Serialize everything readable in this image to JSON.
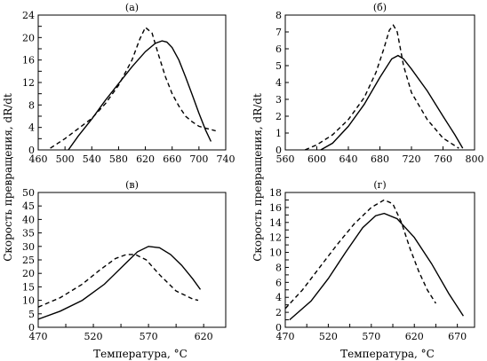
{
  "figure": {
    "ylabel": "Скорость превращения, dR/dt",
    "xlabel": "Температура, °С"
  },
  "chart_data": [
    {
      "type": "line",
      "panel": "(а)",
      "xlim": [
        460,
        740
      ],
      "ylim": [
        0,
        24
      ],
      "xticks": [
        460,
        500,
        540,
        580,
        620,
        660,
        700,
        740
      ],
      "yticks": [
        0,
        2,
        4,
        6,
        8,
        10,
        12,
        14,
        16,
        18,
        20,
        22,
        24
      ],
      "ytick_labels": [
        0,
        4,
        8,
        12,
        16,
        20,
        24
      ],
      "grid": false,
      "series": [
        {
          "style": "solid",
          "x": [
            505,
            520,
            540,
            560,
            580,
            600,
            620,
            635,
            645,
            652,
            660,
            670,
            680,
            690,
            700,
            710,
            718
          ],
          "y": [
            0,
            2.5,
            5.5,
            8.8,
            11.8,
            14.8,
            17.5,
            19.0,
            19.4,
            19.2,
            18.2,
            16.0,
            13.0,
            9.8,
            6.5,
            3.5,
            1.5
          ]
        },
        {
          "style": "dashed",
          "x": [
            478,
            500,
            520,
            540,
            560,
            580,
            600,
            612,
            620,
            630,
            640,
            650,
            660,
            670,
            680,
            690,
            700,
            712,
            725
          ],
          "y": [
            0.3,
            2.0,
            3.8,
            5.6,
            8.2,
            11.5,
            16.0,
            19.8,
            21.8,
            20.8,
            16.8,
            13.0,
            10.0,
            7.8,
            6.0,
            5.0,
            4.2,
            3.8,
            3.4
          ]
        }
      ]
    },
    {
      "type": "line",
      "panel": "(б)",
      "xlim": [
        560,
        800
      ],
      "ylim": [
        0,
        8
      ],
      "xticks": [
        560,
        600,
        640,
        680,
        720,
        760,
        800
      ],
      "yticks": [
        0,
        1,
        2,
        3,
        4,
        5,
        6,
        7,
        8
      ],
      "ytick_labels": [
        0,
        1,
        2,
        3,
        4,
        5,
        6,
        7,
        8
      ],
      "grid": false,
      "series": [
        {
          "style": "solid",
          "x": [
            605,
            620,
            640,
            660,
            680,
            695,
            703,
            710,
            720,
            740,
            760,
            775,
            785
          ],
          "y": [
            0,
            0.4,
            1.4,
            2.7,
            4.3,
            5.4,
            5.6,
            5.4,
            4.8,
            3.5,
            2.0,
            0.9,
            0.1
          ]
        },
        {
          "style": "dashed",
          "x": [
            585,
            600,
            620,
            640,
            660,
            675,
            685,
            692,
            697,
            702,
            710,
            720,
            740,
            760,
            780
          ],
          "y": [
            0,
            0.3,
            0.9,
            1.8,
            3.1,
            4.6,
            6.0,
            7.1,
            7.4,
            7.0,
            5.0,
            3.4,
            1.8,
            0.7,
            0.1
          ]
        }
      ]
    },
    {
      "type": "line",
      "panel": "(в)",
      "xlim": [
        470,
        640
      ],
      "ylim": [
        0,
        50
      ],
      "xticks": [
        470,
        495,
        520,
        545,
        570,
        595,
        620
      ],
      "xtick_labels": [
        470,
        520,
        570,
        620
      ],
      "yticks": [
        0,
        5,
        10,
        15,
        20,
        25,
        30,
        35,
        40,
        45,
        50
      ],
      "ytick_labels": [
        0,
        5,
        10,
        15,
        20,
        25,
        30,
        35,
        40,
        45,
        50
      ],
      "grid": false,
      "series": [
        {
          "style": "solid",
          "x": [
            470,
            490,
            510,
            530,
            550,
            560,
            570,
            580,
            590,
            600,
            610,
            617
          ],
          "y": [
            3,
            6,
            10,
            16,
            24,
            28,
            30,
            29.5,
            27,
            23,
            18,
            14
          ]
        },
        {
          "style": "dashed",
          "x": [
            470,
            490,
            510,
            525,
            540,
            550,
            558,
            568,
            580,
            595,
            610,
            615
          ],
          "y": [
            7.5,
            11,
            16,
            21,
            25.5,
            27,
            27,
            25,
            19.5,
            13.5,
            10.5,
            10
          ]
        }
      ]
    },
    {
      "type": "line",
      "panel": "(г)",
      "xlim": [
        470,
        690
      ],
      "ylim": [
        0,
        18
      ],
      "xticks": [
        470,
        495,
        520,
        545,
        570,
        595,
        620,
        645,
        670
      ],
      "xtick_labels": [
        470,
        520,
        570,
        620,
        670
      ],
      "yticks": [
        0,
        1,
        2,
        3,
        4,
        5,
        6,
        7,
        8,
        9,
        10,
        11,
        12,
        13,
        14,
        15,
        16,
        17,
        18
      ],
      "ytick_labels": [
        0,
        2,
        4,
        6,
        8,
        10,
        12,
        14,
        16,
        18
      ],
      "grid": false,
      "series": [
        {
          "style": "solid",
          "x": [
            475,
            500,
            520,
            540,
            560,
            575,
            585,
            600,
            620,
            640,
            660,
            677
          ],
          "y": [
            1,
            3.5,
            6.5,
            10,
            13.3,
            14.9,
            15.2,
            14.5,
            12,
            8.5,
            4.5,
            1.5
          ]
        },
        {
          "style": "dashed",
          "x": [
            470,
            490,
            510,
            530,
            550,
            570,
            585,
            595,
            605,
            615,
            625,
            635,
            645
          ],
          "y": [
            2.5,
            5,
            8,
            11,
            13.8,
            16.0,
            17.0,
            16.5,
            14,
            10.5,
            7.5,
            5,
            3.2
          ]
        }
      ]
    }
  ]
}
